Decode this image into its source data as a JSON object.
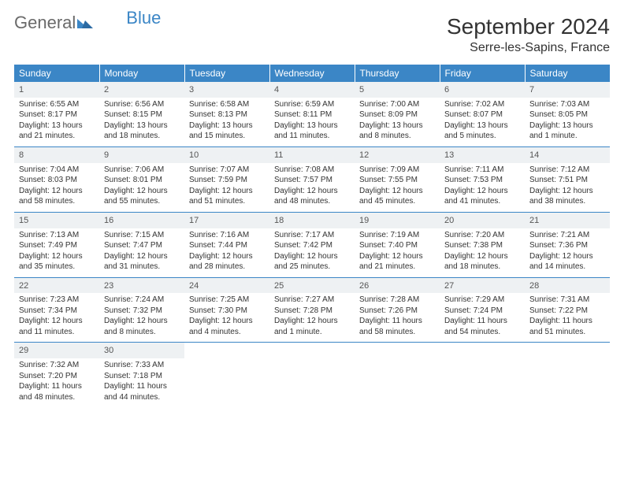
{
  "colors": {
    "header_bg": "#3b86c6",
    "header_text": "#ffffff",
    "daynum_bg": "#eef1f3",
    "text": "#333333",
    "logo_gray": "#6a6a6a",
    "logo_blue": "#3b86c6",
    "separator": "#3b86c6"
  },
  "logo": {
    "part1": "General",
    "part2": "Blue"
  },
  "title": {
    "month": "September 2024",
    "location": "Serre-les-Sapins, France"
  },
  "weekdays": [
    "Sunday",
    "Monday",
    "Tuesday",
    "Wednesday",
    "Thursday",
    "Friday",
    "Saturday"
  ],
  "weeks": [
    [
      {
        "dnum": "1",
        "sunrise": "Sunrise: 6:55 AM",
        "sunset": "Sunset: 8:17 PM",
        "day1": "Daylight: 13 hours",
        "day2": "and 21 minutes."
      },
      {
        "dnum": "2",
        "sunrise": "Sunrise: 6:56 AM",
        "sunset": "Sunset: 8:15 PM",
        "day1": "Daylight: 13 hours",
        "day2": "and 18 minutes."
      },
      {
        "dnum": "3",
        "sunrise": "Sunrise: 6:58 AM",
        "sunset": "Sunset: 8:13 PM",
        "day1": "Daylight: 13 hours",
        "day2": "and 15 minutes."
      },
      {
        "dnum": "4",
        "sunrise": "Sunrise: 6:59 AM",
        "sunset": "Sunset: 8:11 PM",
        "day1": "Daylight: 13 hours",
        "day2": "and 11 minutes."
      },
      {
        "dnum": "5",
        "sunrise": "Sunrise: 7:00 AM",
        "sunset": "Sunset: 8:09 PM",
        "day1": "Daylight: 13 hours",
        "day2": "and 8 minutes."
      },
      {
        "dnum": "6",
        "sunrise": "Sunrise: 7:02 AM",
        "sunset": "Sunset: 8:07 PM",
        "day1": "Daylight: 13 hours",
        "day2": "and 5 minutes."
      },
      {
        "dnum": "7",
        "sunrise": "Sunrise: 7:03 AM",
        "sunset": "Sunset: 8:05 PM",
        "day1": "Daylight: 13 hours",
        "day2": "and 1 minute."
      }
    ],
    [
      {
        "dnum": "8",
        "sunrise": "Sunrise: 7:04 AM",
        "sunset": "Sunset: 8:03 PM",
        "day1": "Daylight: 12 hours",
        "day2": "and 58 minutes."
      },
      {
        "dnum": "9",
        "sunrise": "Sunrise: 7:06 AM",
        "sunset": "Sunset: 8:01 PM",
        "day1": "Daylight: 12 hours",
        "day2": "and 55 minutes."
      },
      {
        "dnum": "10",
        "sunrise": "Sunrise: 7:07 AM",
        "sunset": "Sunset: 7:59 PM",
        "day1": "Daylight: 12 hours",
        "day2": "and 51 minutes."
      },
      {
        "dnum": "11",
        "sunrise": "Sunrise: 7:08 AM",
        "sunset": "Sunset: 7:57 PM",
        "day1": "Daylight: 12 hours",
        "day2": "and 48 minutes."
      },
      {
        "dnum": "12",
        "sunrise": "Sunrise: 7:09 AM",
        "sunset": "Sunset: 7:55 PM",
        "day1": "Daylight: 12 hours",
        "day2": "and 45 minutes."
      },
      {
        "dnum": "13",
        "sunrise": "Sunrise: 7:11 AM",
        "sunset": "Sunset: 7:53 PM",
        "day1": "Daylight: 12 hours",
        "day2": "and 41 minutes."
      },
      {
        "dnum": "14",
        "sunrise": "Sunrise: 7:12 AM",
        "sunset": "Sunset: 7:51 PM",
        "day1": "Daylight: 12 hours",
        "day2": "and 38 minutes."
      }
    ],
    [
      {
        "dnum": "15",
        "sunrise": "Sunrise: 7:13 AM",
        "sunset": "Sunset: 7:49 PM",
        "day1": "Daylight: 12 hours",
        "day2": "and 35 minutes."
      },
      {
        "dnum": "16",
        "sunrise": "Sunrise: 7:15 AM",
        "sunset": "Sunset: 7:47 PM",
        "day1": "Daylight: 12 hours",
        "day2": "and 31 minutes."
      },
      {
        "dnum": "17",
        "sunrise": "Sunrise: 7:16 AM",
        "sunset": "Sunset: 7:44 PM",
        "day1": "Daylight: 12 hours",
        "day2": "and 28 minutes."
      },
      {
        "dnum": "18",
        "sunrise": "Sunrise: 7:17 AM",
        "sunset": "Sunset: 7:42 PM",
        "day1": "Daylight: 12 hours",
        "day2": "and 25 minutes."
      },
      {
        "dnum": "19",
        "sunrise": "Sunrise: 7:19 AM",
        "sunset": "Sunset: 7:40 PM",
        "day1": "Daylight: 12 hours",
        "day2": "and 21 minutes."
      },
      {
        "dnum": "20",
        "sunrise": "Sunrise: 7:20 AM",
        "sunset": "Sunset: 7:38 PM",
        "day1": "Daylight: 12 hours",
        "day2": "and 18 minutes."
      },
      {
        "dnum": "21",
        "sunrise": "Sunrise: 7:21 AM",
        "sunset": "Sunset: 7:36 PM",
        "day1": "Daylight: 12 hours",
        "day2": "and 14 minutes."
      }
    ],
    [
      {
        "dnum": "22",
        "sunrise": "Sunrise: 7:23 AM",
        "sunset": "Sunset: 7:34 PM",
        "day1": "Daylight: 12 hours",
        "day2": "and 11 minutes."
      },
      {
        "dnum": "23",
        "sunrise": "Sunrise: 7:24 AM",
        "sunset": "Sunset: 7:32 PM",
        "day1": "Daylight: 12 hours",
        "day2": "and 8 minutes."
      },
      {
        "dnum": "24",
        "sunrise": "Sunrise: 7:25 AM",
        "sunset": "Sunset: 7:30 PM",
        "day1": "Daylight: 12 hours",
        "day2": "and 4 minutes."
      },
      {
        "dnum": "25",
        "sunrise": "Sunrise: 7:27 AM",
        "sunset": "Sunset: 7:28 PM",
        "day1": "Daylight: 12 hours",
        "day2": "and 1 minute."
      },
      {
        "dnum": "26",
        "sunrise": "Sunrise: 7:28 AM",
        "sunset": "Sunset: 7:26 PM",
        "day1": "Daylight: 11 hours",
        "day2": "and 58 minutes."
      },
      {
        "dnum": "27",
        "sunrise": "Sunrise: 7:29 AM",
        "sunset": "Sunset: 7:24 PM",
        "day1": "Daylight: 11 hours",
        "day2": "and 54 minutes."
      },
      {
        "dnum": "28",
        "sunrise": "Sunrise: 7:31 AM",
        "sunset": "Sunset: 7:22 PM",
        "day1": "Daylight: 11 hours",
        "day2": "and 51 minutes."
      }
    ],
    [
      {
        "dnum": "29",
        "sunrise": "Sunrise: 7:32 AM",
        "sunset": "Sunset: 7:20 PM",
        "day1": "Daylight: 11 hours",
        "day2": "and 48 minutes."
      },
      {
        "dnum": "30",
        "sunrise": "Sunrise: 7:33 AM",
        "sunset": "Sunset: 7:18 PM",
        "day1": "Daylight: 11 hours",
        "day2": "and 44 minutes."
      },
      {
        "empty": true
      },
      {
        "empty": true
      },
      {
        "empty": true
      },
      {
        "empty": true
      },
      {
        "empty": true
      }
    ]
  ]
}
